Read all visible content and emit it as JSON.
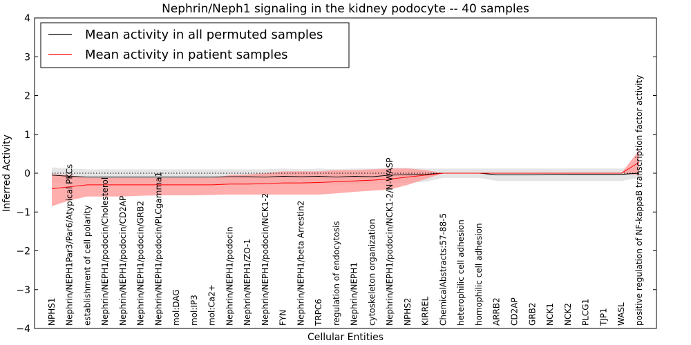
{
  "chart_data": {
    "type": "line",
    "title": "Nephrin/Neph1 signaling in the kidney podocyte -- 40 samples",
    "xlabel": "Cellular Entities",
    "ylabel": "Inferred Activity",
    "ylim": [
      -4,
      4
    ],
    "yticks": [
      -4,
      -3,
      -2,
      -1,
      0,
      1,
      2,
      3,
      4
    ],
    "legend_position": "top-left",
    "grid": false,
    "categories": [
      "NPHS1",
      "Nephrin/NEPH1Par3/Par6/Atypical PKCs",
      "establishment of cell polarity",
      "Nephrin/NEPH1/podocin/Cholesterol",
      "Nephrin/NEPH1/podocin/CD2AP",
      "Nephrin/NEPH1/podocin/GRB2",
      "Nephrin/NEPH1/podocin/PLCgamma1",
      "mol:DAG",
      "mol:IP3",
      "mol:Ca2+",
      "Nephrin/NEPH1/podocin",
      "Nephrin/NEPH1/ZO-1",
      "Nephrin/NEPH1/podocin/NCK1-2",
      "FYN",
      "Nephrin/NEPH1/beta Arrestin2",
      "TRPC6",
      "regulation of endocytosis",
      "Nephrin/NEPH1",
      "cytoskeleton organization",
      "Nephrin/NEPH1/podocin/NCK1-2/N-WASP",
      "NPHS2",
      "KIRREL",
      "ChemicalAbstracts:57-88-5",
      "heterophilic cell adhesion",
      "homophilic cell adhesion",
      "ARRB2",
      "CD2AP",
      "GRB2",
      "NCK1",
      "NCK2",
      "PLCG1",
      "TJP1",
      "WASL",
      "positive regulation of NF-kappaB transcription factor activity"
    ],
    "series": [
      {
        "name": "Mean activity in all permuted samples",
        "color": "#000000",
        "band_color": "#d3d3d3",
        "values": [
          -0.05,
          -0.08,
          -0.1,
          -0.1,
          -0.1,
          -0.1,
          -0.1,
          -0.1,
          -0.1,
          -0.1,
          -0.09,
          -0.09,
          -0.1,
          -0.08,
          -0.09,
          -0.08,
          -0.1,
          -0.08,
          -0.09,
          -0.05,
          -0.04,
          -0.03,
          0.0,
          0.0,
          0.0,
          -0.04,
          -0.04,
          -0.04,
          -0.03,
          -0.03,
          -0.03,
          -0.03,
          -0.03,
          0.0
        ],
        "upper": [
          0.15,
          0.12,
          0.1,
          0.1,
          0.1,
          0.1,
          0.1,
          0.1,
          0.1,
          0.1,
          0.1,
          0.1,
          0.1,
          0.12,
          0.1,
          0.12,
          0.1,
          0.12,
          0.12,
          0.14,
          0.14,
          0.12,
          0.12,
          0.12,
          0.12,
          0.12,
          0.12,
          0.12,
          0.12,
          0.12,
          0.12,
          0.12,
          0.12,
          0.12
        ],
        "lower": [
          -0.25,
          -0.28,
          -0.3,
          -0.3,
          -0.3,
          -0.3,
          -0.3,
          -0.3,
          -0.3,
          -0.3,
          -0.3,
          -0.3,
          -0.3,
          -0.28,
          -0.28,
          -0.28,
          -0.3,
          -0.28,
          -0.28,
          -0.25,
          -0.25,
          -0.22,
          -0.12,
          -0.12,
          -0.12,
          -0.2,
          -0.2,
          -0.2,
          -0.2,
          -0.2,
          -0.2,
          -0.2,
          -0.2,
          -0.12
        ]
      },
      {
        "name": "Mean activity in patient samples",
        "color": "#ff0000",
        "band_color": "#ff9a9a",
        "values": [
          -0.4,
          -0.35,
          -0.3,
          -0.3,
          -0.3,
          -0.3,
          -0.3,
          -0.3,
          -0.3,
          -0.3,
          -0.28,
          -0.28,
          -0.27,
          -0.25,
          -0.25,
          -0.24,
          -0.22,
          -0.2,
          -0.18,
          -0.15,
          -0.1,
          -0.05,
          0.0,
          0.0,
          0.0,
          0.0,
          0.0,
          0.0,
          0.0,
          0.0,
          0.0,
          0.0,
          0.0,
          0.28
        ],
        "upper": [
          -0.02,
          -0.05,
          -0.12,
          -0.12,
          -0.12,
          -0.12,
          -0.12,
          -0.12,
          -0.12,
          -0.12,
          -0.05,
          -0.03,
          0.0,
          0.05,
          0.05,
          0.05,
          0.08,
          0.08,
          0.1,
          0.12,
          0.12,
          0.08,
          0.0,
          0.0,
          0.0,
          0.0,
          0.0,
          0.0,
          0.0,
          0.0,
          0.0,
          0.0,
          0.0,
          0.6
        ],
        "lower": [
          -0.85,
          -0.7,
          -0.6,
          -0.6,
          -0.6,
          -0.58,
          -0.57,
          -0.57,
          -0.57,
          -0.56,
          -0.55,
          -0.55,
          -0.55,
          -0.55,
          -0.55,
          -0.55,
          -0.52,
          -0.48,
          -0.45,
          -0.42,
          -0.3,
          -0.15,
          0.0,
          0.0,
          0.0,
          0.0,
          0.0,
          0.0,
          0.0,
          0.0,
          0.0,
          0.0,
          0.0,
          -0.05
        ]
      }
    ],
    "zero_reference": {
      "value": 0,
      "style": "dotted"
    }
  }
}
